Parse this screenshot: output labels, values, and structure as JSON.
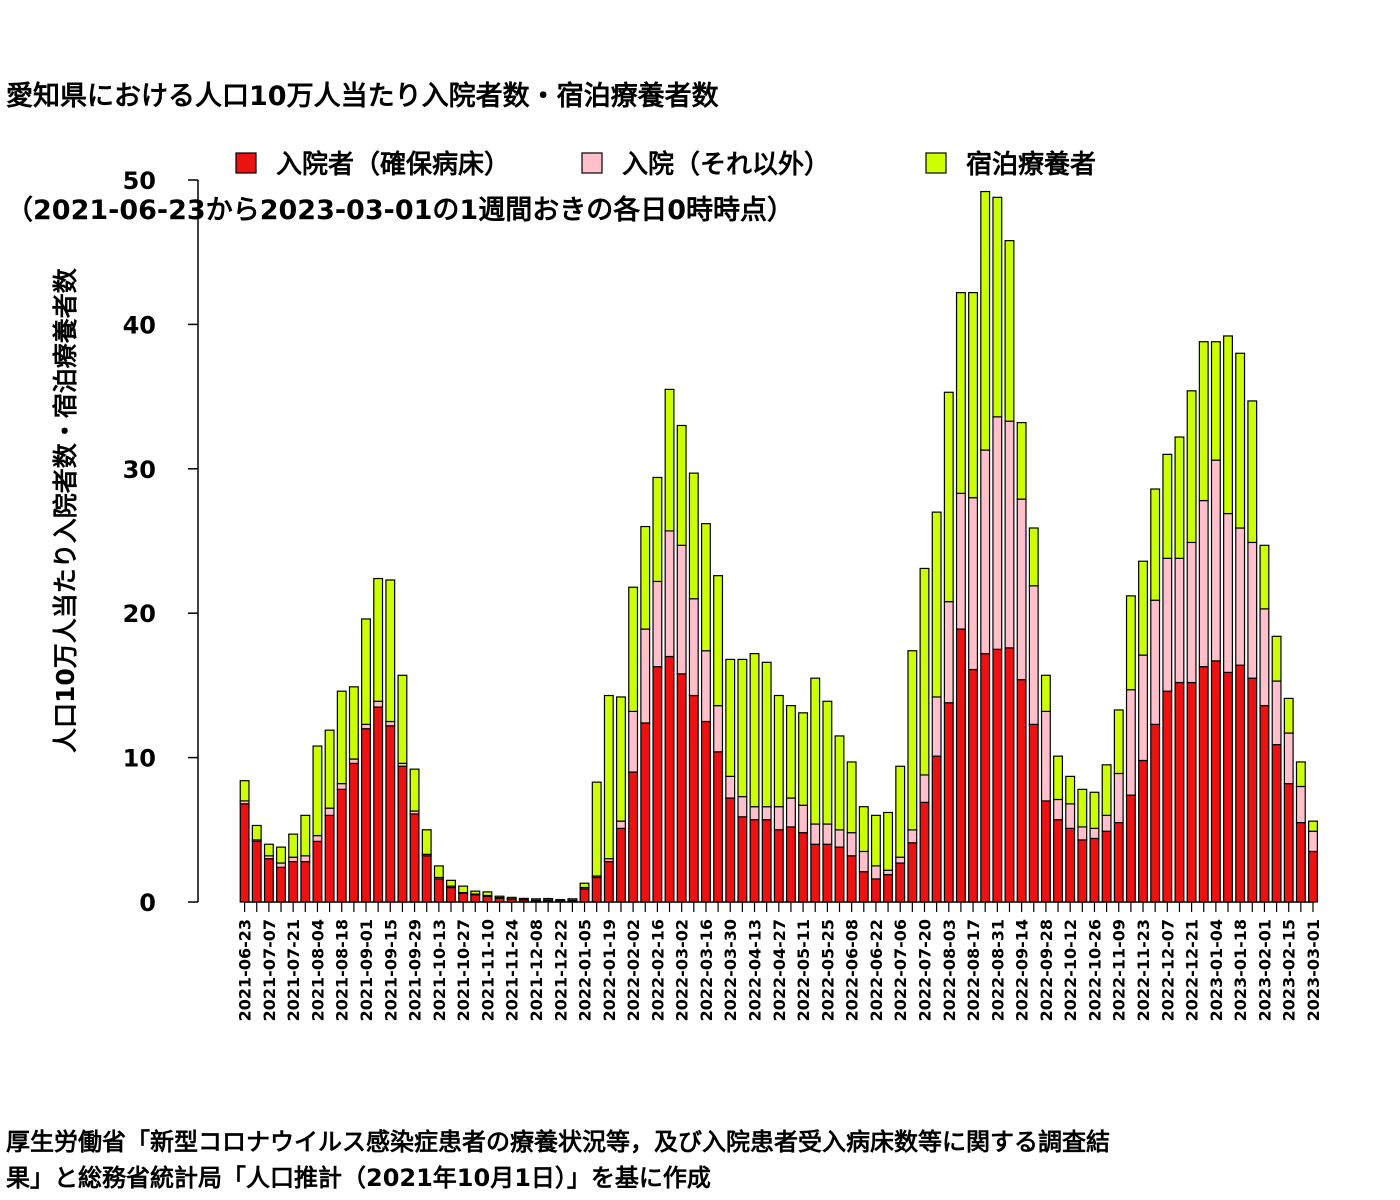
{
  "title_lines": [
    "愛知県における人口10万人当たり入院者数・宿泊療養者数",
    "（2021-06-23から2023-03-01の1週間おきの各日0時時点）"
  ],
  "source_lines": [
    "厚生労働省「新型コロナウイルス感染症患者の療養状況等，及び入院患者受入病床数等に関する調査結",
    "果」と総務省統計局「人口推計（2021年10月1日）」を基に作成"
  ],
  "chart_data": {
    "type": "bar",
    "stacked": true,
    "title": "愛知県における人口10万人当たり入院者数・宿泊療養者数 （2021-06-23から2023-03-01の1週間おきの各日0時時点）",
    "xlabel": "",
    "ylabel": "人口10万人当たり入院者数・宿泊療養者数",
    "ylim": [
      0,
      50
    ],
    "yticks": [
      0,
      10,
      20,
      30,
      40,
      50
    ],
    "legend_position": "top",
    "grid": false,
    "categories": [
      "2021-06-23",
      "2021-06-30",
      "2021-07-07",
      "2021-07-14",
      "2021-07-21",
      "2021-07-28",
      "2021-08-04",
      "2021-08-11",
      "2021-08-18",
      "2021-08-25",
      "2021-09-01",
      "2021-09-08",
      "2021-09-15",
      "2021-09-22",
      "2021-09-29",
      "2021-10-06",
      "2021-10-13",
      "2021-10-20",
      "2021-10-27",
      "2021-11-03",
      "2021-11-10",
      "2021-11-17",
      "2021-11-24",
      "2021-12-01",
      "2021-12-08",
      "2021-12-15",
      "2021-12-22",
      "2021-12-29",
      "2022-01-05",
      "2022-01-12",
      "2022-01-19",
      "2022-01-26",
      "2022-02-02",
      "2022-02-09",
      "2022-02-16",
      "2022-02-23",
      "2022-03-02",
      "2022-03-09",
      "2022-03-16",
      "2022-03-23",
      "2022-03-30",
      "2022-04-06",
      "2022-04-13",
      "2022-04-20",
      "2022-04-27",
      "2022-05-04",
      "2022-05-11",
      "2022-05-18",
      "2022-05-25",
      "2022-06-01",
      "2022-06-08",
      "2022-06-15",
      "2022-06-22",
      "2022-06-29",
      "2022-07-06",
      "2022-07-13",
      "2022-07-20",
      "2022-07-27",
      "2022-08-03",
      "2022-08-10",
      "2022-08-17",
      "2022-08-24",
      "2022-08-31",
      "2022-09-07",
      "2022-09-14",
      "2022-09-21",
      "2022-09-28",
      "2022-10-05",
      "2022-10-12",
      "2022-10-19",
      "2022-10-26",
      "2022-11-02",
      "2022-11-09",
      "2022-11-16",
      "2022-11-23",
      "2022-11-30",
      "2022-12-07",
      "2022-12-14",
      "2022-12-21",
      "2022-12-28",
      "2023-01-04",
      "2023-01-11",
      "2023-01-18",
      "2023-01-25",
      "2023-02-01",
      "2023-02-08",
      "2023-02-15",
      "2023-02-22",
      "2023-03-01"
    ],
    "tick_labels": [
      "2021-06-23",
      "2021-07-07",
      "2021-07-21",
      "2021-08-04",
      "2021-08-18",
      "2021-09-01",
      "2021-09-15",
      "2021-09-29",
      "2021-10-13",
      "2021-10-27",
      "2021-11-10",
      "2021-11-24",
      "2021-12-08",
      "2021-12-22",
      "2022-01-05",
      "2022-01-19",
      "2022-02-02",
      "2022-02-16",
      "2022-03-02",
      "2022-03-16",
      "2022-03-30",
      "2022-04-13",
      "2022-04-27",
      "2022-05-11",
      "2022-05-25",
      "2022-06-08",
      "2022-06-22",
      "2022-07-06",
      "2022-07-20",
      "2022-08-03",
      "2022-08-17",
      "2022-08-31",
      "2022-09-14",
      "2022-09-28",
      "2022-10-12",
      "2022-10-26",
      "2022-11-09",
      "2022-11-23",
      "2022-12-07",
      "2022-12-21",
      "2023-01-04",
      "2023-01-18",
      "2023-02-01",
      "2023-02-15",
      "2023-03-01"
    ],
    "series": [
      {
        "name": "入院者（確保病床）",
        "color": "#ee1111",
        "values": [
          6.8,
          4.2,
          3.0,
          2.4,
          2.8,
          2.8,
          4.2,
          6.0,
          7.8,
          9.6,
          12.0,
          13.5,
          12.2,
          9.4,
          6.1,
          3.2,
          1.6,
          1.0,
          0.6,
          0.5,
          0.4,
          0.25,
          0.2,
          0.15,
          0.1,
          0.12,
          0.1,
          0.1,
          0.9,
          1.7,
          2.8,
          5.1,
          9.0,
          12.4,
          16.3,
          17.0,
          15.8,
          14.3,
          12.5,
          10.4,
          7.2,
          5.9,
          5.7,
          5.7,
          5.0,
          5.2,
          4.8,
          4.0,
          4.0,
          3.8,
          3.2,
          2.1,
          1.6,
          1.9,
          2.7,
          4.1,
          6.9,
          10.1,
          13.8,
          18.9,
          16.1,
          17.2,
          17.5,
          17.6,
          15.4,
          12.3,
          7.0,
          5.7,
          5.1,
          4.3,
          4.4,
          4.9,
          5.5,
          7.4,
          9.8,
          12.3,
          14.6,
          15.2,
          15.2,
          16.3,
          16.7,
          15.9,
          16.4,
          15.5,
          13.6,
          10.9,
          8.2,
          5.5,
          3.5
        ]
      },
      {
        "name": "入院（それ以外）",
        "color": "#ffc0cb",
        "values": [
          0.2,
          0.1,
          0.2,
          0.3,
          0.3,
          0.4,
          0.4,
          0.5,
          0.4,
          0.3,
          0.3,
          0.4,
          0.3,
          0.2,
          0.2,
          0.1,
          0.1,
          0.1,
          0.05,
          0.05,
          0.05,
          0.05,
          0.02,
          0.02,
          0.02,
          0.02,
          0.02,
          0.02,
          0.1,
          0.1,
          0.2,
          0.5,
          4.2,
          6.5,
          5.9,
          8.7,
          8.9,
          6.7,
          4.9,
          3.2,
          1.5,
          1.4,
          0.9,
          0.9,
          1.6,
          2.0,
          1.9,
          1.4,
          1.4,
          1.2,
          1.6,
          1.4,
          0.9,
          0.3,
          0.4,
          0.9,
          1.9,
          4.1,
          7.0,
          9.4,
          11.9,
          14.1,
          16.1,
          15.7,
          12.5,
          9.6,
          6.2,
          1.4,
          1.7,
          0.9,
          0.7,
          1.1,
          3.4,
          7.3,
          7.3,
          8.6,
          9.2,
          8.6,
          9.7,
          11.5,
          13.9,
          11.0,
          9.5,
          9.4,
          6.7,
          4.4,
          3.5,
          2.5,
          1.4
        ]
      },
      {
        "name": "宿泊療養者",
        "color": "#ccff00",
        "values": [
          1.4,
          1.0,
          0.8,
          1.1,
          1.6,
          2.8,
          6.2,
          5.4,
          6.4,
          5.0,
          7.3,
          8.5,
          9.8,
          6.1,
          2.9,
          1.7,
          0.8,
          0.4,
          0.45,
          0.2,
          0.25,
          0.1,
          0.1,
          0.08,
          0.1,
          0.1,
          0.05,
          0.1,
          0.3,
          6.5,
          11.3,
          8.6,
          8.6,
          7.1,
          7.2,
          9.8,
          8.3,
          8.7,
          8.8,
          9.0,
          8.1,
          9.5,
          10.6,
          10.0,
          7.7,
          6.4,
          6.4,
          10.1,
          8.5,
          6.5,
          4.9,
          3.1,
          3.5,
          4.0,
          6.3,
          12.4,
          14.3,
          12.8,
          14.5,
          13.9,
          14.2,
          17.9,
          15.2,
          12.5,
          5.3,
          4.0,
          2.5,
          3.0,
          1.9,
          2.6,
          2.5,
          3.5,
          4.4,
          6.5,
          6.5,
          7.7,
          7.2,
          8.4,
          10.5,
          11.0,
          8.2,
          12.3,
          12.1,
          9.8,
          4.4,
          3.1,
          2.4,
          1.7,
          0.7
        ]
      }
    ]
  }
}
